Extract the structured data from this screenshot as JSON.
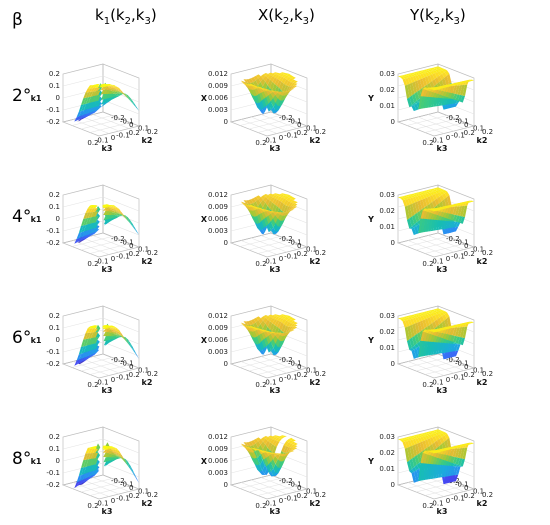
{
  "layout_labels": {
    "beta_header": "β",
    "columns": [
      {
        "id": "k1",
        "title_main": "k",
        "title_sub": "1",
        "title_rest": "(k",
        "title_sub2": "2",
        "title_mid": ",k",
        "title_sub3": "3",
        "title_end": ")"
      },
      {
        "id": "X",
        "title_main": "X(k",
        "title_sub": "2",
        "title_rest": ",k",
        "title_sub2": "3",
        "title_end": ")"
      },
      {
        "id": "Y",
        "title_main": "Y(k",
        "title_sub": "2",
        "title_rest": ",k",
        "title_sub2": "3",
        "title_end": ")"
      }
    ],
    "rows": [
      "2°",
      "4°",
      "6°",
      "8°"
    ]
  },
  "chart_data": [
    {
      "type": "surface",
      "title": "k1(k2,k3)",
      "zlabel": "k1",
      "ylabel": "k3",
      "xlabel": "k2",
      "z_ticks": [
        "0.2",
        "0.1",
        "0",
        "-0.1",
        "-0.2"
      ],
      "k3_ticks": [
        "0.2",
        "0.1",
        "0",
        "-0.1",
        "-0.2"
      ],
      "k2_ticks": [
        "-0.2",
        "-0.1",
        "0",
        "0.1",
        "0.2"
      ],
      "zlim": [
        -0.2,
        0.2
      ],
      "rows_beta": [
        "2°",
        "4°",
        "6°",
        "8°"
      ]
    },
    {
      "type": "surface",
      "title": "X(k2,k3)",
      "zlabel": "X",
      "ylabel": "k3",
      "xlabel": "k2",
      "z_ticks": [
        "0.012",
        "0.009",
        "0.006",
        "0.003",
        "0"
      ],
      "k3_ticks": [
        "0.2",
        "0.1",
        "0",
        "-0.1",
        "-0.2"
      ],
      "k2_ticks": [
        "-0.2",
        "-0.1",
        "0",
        "0.1",
        "0.2"
      ],
      "zlim": [
        0,
        0.012
      ],
      "rows_beta": [
        "2°",
        "4°",
        "6°",
        "8°"
      ]
    },
    {
      "type": "surface",
      "title": "Y(k2,k3)",
      "zlabel": "Y",
      "ylabel": "k3",
      "xlabel": "k2",
      "z_ticks": [
        "0.03",
        "0.02",
        "0.01",
        "0"
      ],
      "k3_ticks": [
        "0.2",
        "0.1",
        "0",
        "-0.1",
        "-0.2"
      ],
      "k2_ticks": [
        "-0.2",
        "-0.1",
        "0",
        "0.1",
        "0.2"
      ],
      "zlim": [
        0,
        0.03
      ],
      "rows_beta": [
        "2°",
        "4°",
        "6°",
        "8°"
      ]
    }
  ],
  "colormap": [
    "#3e26a8",
    "#4748f4",
    "#2e87f7",
    "#1ca9df",
    "#17beb2",
    "#41cc7b",
    "#a3c935",
    "#e9bb32",
    "#fcde26",
    "#f9fb0e"
  ]
}
